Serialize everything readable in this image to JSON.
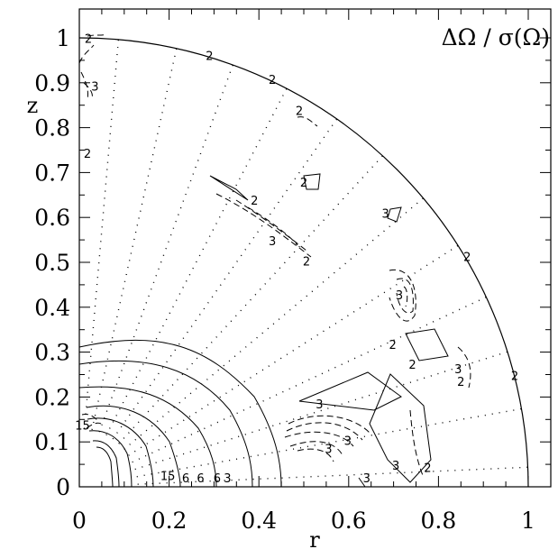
{
  "chart_data": {
    "type": "contour",
    "title": "ΔΩ / σ(Ω)",
    "xlabel": "r",
    "ylabel": "z",
    "xlim": [
      0,
      1.05
    ],
    "ylim": [
      0,
      1.05
    ],
    "x_ticks": [
      "0",
      "0.2",
      "0.4",
      "0.6",
      "0.8",
      "1"
    ],
    "y_ticks": [
      "0",
      "0.1",
      "0.2",
      "0.3",
      "0.4",
      "0.5",
      "0.6",
      "0.7",
      "0.8",
      "0.9",
      "1"
    ],
    "boundary": "quarter circle of radius 1",
    "dotted_rays_deg": [
      2.5,
      10,
      17.5,
      25,
      32.5,
      40,
      47.5,
      55,
      62.5,
      70,
      77.5,
      85
    ],
    "contour_labels": [
      {
        "text": "2",
        "x": 0.02,
        "y": 0.996
      },
      {
        "text": "2",
        "x": 0.29,
        "y": 0.958
      },
      {
        "text": "2",
        "x": 0.43,
        "y": 0.905
      },
      {
        "text": "3",
        "x": 0.035,
        "y": 0.89
      },
      {
        "text": "2",
        "x": 0.49,
        "y": 0.835
      },
      {
        "text": "2",
        "x": 0.018,
        "y": 0.74
      },
      {
        "text": "2",
        "x": 0.5,
        "y": 0.676
      },
      {
        "text": "2",
        "x": 0.39,
        "y": 0.636
      },
      {
        "text": "3",
        "x": 0.682,
        "y": 0.606
      },
      {
        "text": "3",
        "x": 0.43,
        "y": 0.545
      },
      {
        "text": "2",
        "x": 0.506,
        "y": 0.5
      },
      {
        "text": "2",
        "x": 0.864,
        "y": 0.51
      },
      {
        "text": "3",
        "x": 0.713,
        "y": 0.425
      },
      {
        "text": "2",
        "x": 0.698,
        "y": 0.314
      },
      {
        "text": "2",
        "x": 0.742,
        "y": 0.27
      },
      {
        "text": "3",
        "x": 0.844,
        "y": 0.26
      },
      {
        "text": "2",
        "x": 0.85,
        "y": 0.232
      },
      {
        "text": "2",
        "x": 0.97,
        "y": 0.245
      },
      {
        "text": "3",
        "x": 0.535,
        "y": 0.182
      },
      {
        "text": "3",
        "x": 0.598,
        "y": 0.1
      },
      {
        "text": "3",
        "x": 0.555,
        "y": 0.082
      },
      {
        "text": "3",
        "x": 0.705,
        "y": 0.045
      },
      {
        "text": "3",
        "x": 0.64,
        "y": 0.017
      },
      {
        "text": "2",
        "x": 0.776,
        "y": 0.04
      },
      {
        "text": "3",
        "x": 0.33,
        "y": 0.017
      },
      {
        "text": "6",
        "x": 0.307,
        "y": 0.017
      },
      {
        "text": "6",
        "x": 0.27,
        "y": 0.017
      },
      {
        "text": "6",
        "x": 0.237,
        "y": 0.017
      },
      {
        "text": "15",
        "x": 0.197,
        "y": 0.022
      },
      {
        "text": "15",
        "x": 0.007,
        "y": 0.135
      }
    ]
  }
}
